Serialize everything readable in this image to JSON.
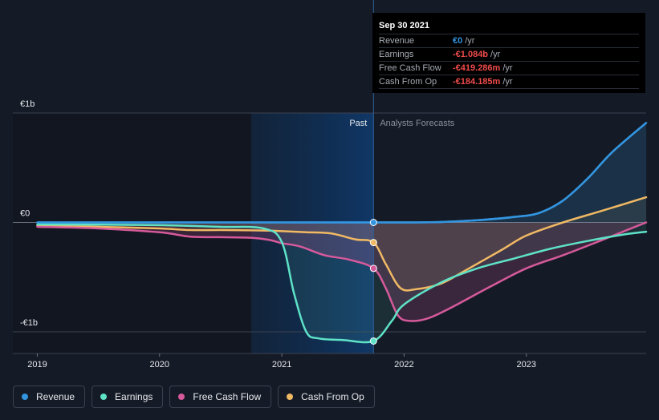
{
  "chart_data": {
    "type": "line",
    "x_ticks": [
      "2019",
      "2020",
      "2021",
      "2022",
      "2023"
    ],
    "y_ticks": [
      {
        "label": "€1b",
        "value": 1000
      },
      {
        "label": "€0",
        "value": 0
      },
      {
        "label": "-€1b",
        "value": -1000
      }
    ],
    "xlim": [
      2018.8,
      2023.98
    ],
    "ylim": [
      -1100,
      1000
    ],
    "units": "€m",
    "past_label": "Past",
    "forecast_label": "Analysts Forecasts",
    "divider_x": 2021.75,
    "series": [
      {
        "name": "Revenue",
        "color": "#3395e0",
        "fill": true,
        "points": [
          [
            2019.0,
            0
          ],
          [
            2020.0,
            0
          ],
          [
            2021.0,
            0
          ],
          [
            2021.75,
            0
          ],
          [
            2022.0,
            0
          ],
          [
            2022.3,
            4
          ],
          [
            2022.6,
            20
          ],
          [
            2022.9,
            50
          ],
          [
            2023.1,
            85
          ],
          [
            2023.3,
            200
          ],
          [
            2023.5,
            400
          ],
          [
            2023.7,
            640
          ],
          [
            2023.98,
            910
          ]
        ]
      },
      {
        "name": "Earnings",
        "color": "#5ee2c8",
        "fill": true,
        "points": [
          [
            2019.0,
            -18
          ],
          [
            2019.5,
            -20
          ],
          [
            2020.0,
            -25
          ],
          [
            2020.5,
            -40
          ],
          [
            2020.85,
            -55
          ],
          [
            2021.0,
            -180
          ],
          [
            2021.1,
            -650
          ],
          [
            2021.2,
            -1000
          ],
          [
            2021.3,
            -1060
          ],
          [
            2021.5,
            -1075
          ],
          [
            2021.75,
            -1084
          ],
          [
            2021.9,
            -900
          ],
          [
            2022.0,
            -750
          ],
          [
            2022.3,
            -550
          ],
          [
            2022.6,
            -420
          ],
          [
            2022.9,
            -330
          ],
          [
            2023.2,
            -240
          ],
          [
            2023.5,
            -170
          ],
          [
            2023.8,
            -110
          ],
          [
            2023.98,
            -85
          ]
        ]
      },
      {
        "name": "Free Cash Flow",
        "color": "#d65a9b",
        "fill": true,
        "points": [
          [
            2019.0,
            -40
          ],
          [
            2019.5,
            -55
          ],
          [
            2020.0,
            -90
          ],
          [
            2020.25,
            -130
          ],
          [
            2020.5,
            -135
          ],
          [
            2020.75,
            -140
          ],
          [
            2020.9,
            -160
          ],
          [
            2021.0,
            -190
          ],
          [
            2021.15,
            -220
          ],
          [
            2021.35,
            -300
          ],
          [
            2021.55,
            -340
          ],
          [
            2021.75,
            -420
          ],
          [
            2021.85,
            -600
          ],
          [
            2021.95,
            -850
          ],
          [
            2022.05,
            -900
          ],
          [
            2022.2,
            -875
          ],
          [
            2022.4,
            -770
          ],
          [
            2022.7,
            -590
          ],
          [
            2023.0,
            -420
          ],
          [
            2023.3,
            -300
          ],
          [
            2023.6,
            -170
          ],
          [
            2023.8,
            -80
          ],
          [
            2023.98,
            0
          ]
        ]
      },
      {
        "name": "Cash From Op",
        "color": "#f0b964",
        "fill": true,
        "points": [
          [
            2019.0,
            -30
          ],
          [
            2019.5,
            -40
          ],
          [
            2020.0,
            -55
          ],
          [
            2020.25,
            -70
          ],
          [
            2020.5,
            -70
          ],
          [
            2020.75,
            -72
          ],
          [
            2020.9,
            -75
          ],
          [
            2021.0,
            -80
          ],
          [
            2021.2,
            -90
          ],
          [
            2021.4,
            -100
          ],
          [
            2021.6,
            -155
          ],
          [
            2021.75,
            -184
          ],
          [
            2021.85,
            -380
          ],
          [
            2021.97,
            -600
          ],
          [
            2022.1,
            -610
          ],
          [
            2022.3,
            -560
          ],
          [
            2022.5,
            -440
          ],
          [
            2022.8,
            -250
          ],
          [
            2023.0,
            -120
          ],
          [
            2023.3,
            0
          ],
          [
            2023.6,
            100
          ],
          [
            2023.98,
            230
          ]
        ]
      }
    ]
  },
  "tooltip": {
    "date": "Sep 30 2021",
    "rows": [
      {
        "name": "Revenue",
        "value": "€0",
        "unit": "/yr",
        "color": "#3395e0"
      },
      {
        "name": "Earnings",
        "value": "-€1.084b",
        "unit": "/yr",
        "color": "#f04b4b"
      },
      {
        "name": "Free Cash Flow",
        "value": "-€419.286m",
        "unit": "/yr",
        "color": "#f04b4b"
      },
      {
        "name": "Cash From Op",
        "value": "-€184.185m",
        "unit": "/yr",
        "color": "#f04b4b"
      }
    ]
  },
  "legend": [
    {
      "label": "Revenue",
      "color": "#3395e0"
    },
    {
      "label": "Earnings",
      "color": "#5ee2c8"
    },
    {
      "label": "Free Cash Flow",
      "color": "#d65a9b"
    },
    {
      "label": "Cash From Op",
      "color": "#f0b964"
    }
  ]
}
